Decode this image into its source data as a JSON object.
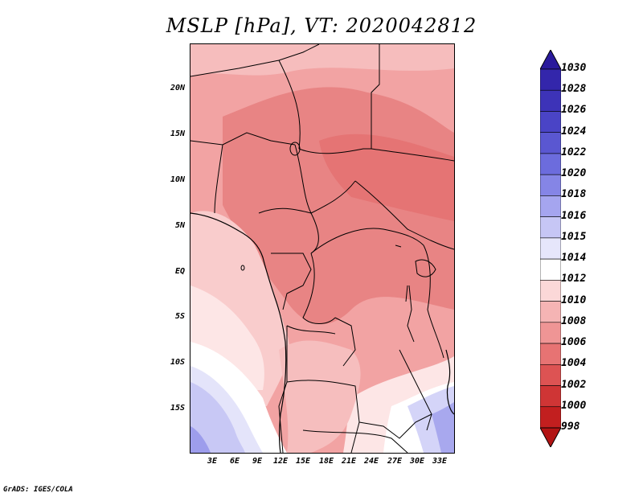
{
  "title": "MSLP [hPa], VT: 2020042812",
  "credit": "GrADS: IGES/COLA",
  "y_ticks": [
    "20N",
    "15N",
    "10N",
    "5N",
    "EQ",
    "5S",
    "10S",
    "15S"
  ],
  "x_ticks": [
    "3E",
    "6E",
    "9E",
    "12E",
    "15E",
    "18E",
    "21E",
    "24E",
    "27E",
    "30E",
    "33E"
  ],
  "colorbar": {
    "labels": [
      "1030",
      "1028",
      "1026",
      "1024",
      "1022",
      "1020",
      "1018",
      "1016",
      "1015",
      "1014",
      "1012",
      "1010",
      "1008",
      "1006",
      "1004",
      "1002",
      "1000",
      "998"
    ],
    "colors": [
      "#2a1a9c",
      "#3326ab",
      "#3d33b8",
      "#4a44c6",
      "#5a57d1",
      "#6c6cdd",
      "#8585e6",
      "#a5a5ef",
      "#c6c6f5",
      "#e6e6fb",
      "#ffffff",
      "#fbd8d8",
      "#f5b4b4",
      "#ef9595",
      "#e77373",
      "#dd5353",
      "#cf3535",
      "#c21f1f",
      "#b21414"
    ]
  }
}
